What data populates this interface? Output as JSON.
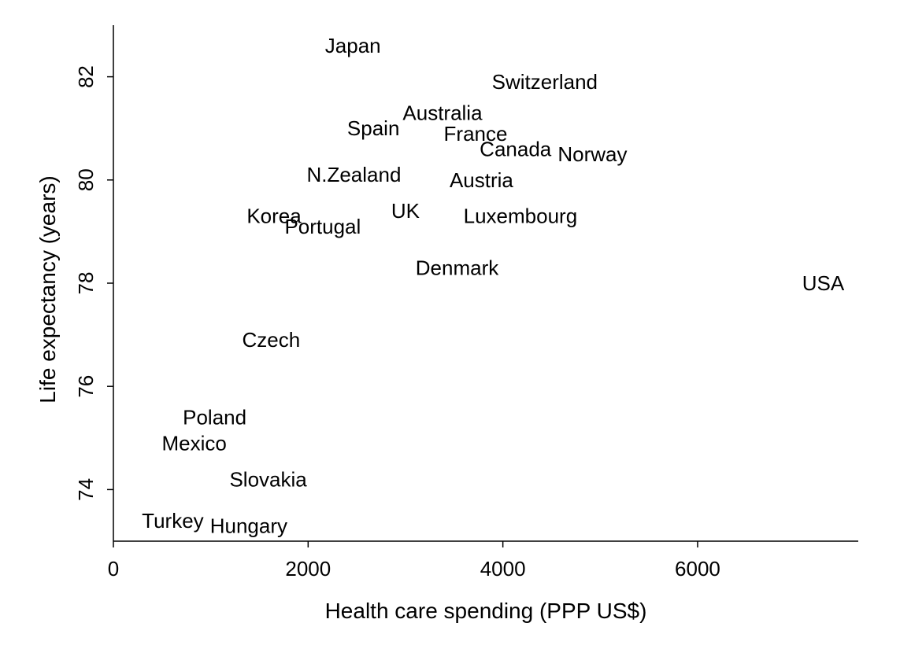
{
  "chart_data": {
    "type": "scatter",
    "title": "",
    "xlabel": "Health care spending (PPP US$)",
    "ylabel": "Life expectancy (years)",
    "xlim": [
      0,
      7600
    ],
    "ylim": [
      73,
      83
    ],
    "xticks": [
      0,
      2000,
      4000,
      6000
    ],
    "yticks": [
      74,
      76,
      78,
      80,
      82
    ],
    "grid": false,
    "legend": "none",
    "points": [
      {
        "label": "Japan",
        "x": 2460,
        "y": 82.6
      },
      {
        "label": "Switzerland",
        "x": 4430,
        "y": 81.9
      },
      {
        "label": "Australia",
        "x": 3380,
        "y": 81.3
      },
      {
        "label": "Spain",
        "x": 2670,
        "y": 81.0
      },
      {
        "label": "France",
        "x": 3720,
        "y": 80.9
      },
      {
        "label": "Canada",
        "x": 4130,
        "y": 80.6
      },
      {
        "label": "Norway",
        "x": 4920,
        "y": 80.5
      },
      {
        "label": "N.Zealand",
        "x": 2470,
        "y": 80.1
      },
      {
        "label": "Austria",
        "x": 3780,
        "y": 80.0
      },
      {
        "label": "UK",
        "x": 3000,
        "y": 79.4
      },
      {
        "label": "Luxembourg",
        "x": 4180,
        "y": 79.3
      },
      {
        "label": "Korea",
        "x": 1650,
        "y": 79.3
      },
      {
        "label": "Portugal",
        "x": 2150,
        "y": 79.1
      },
      {
        "label": "Denmark",
        "x": 3530,
        "y": 78.3
      },
      {
        "label": "USA",
        "x": 7290,
        "y": 78.0
      },
      {
        "label": "Czech",
        "x": 1620,
        "y": 76.9
      },
      {
        "label": "Poland",
        "x": 1040,
        "y": 75.4
      },
      {
        "label": "Mexico",
        "x": 830,
        "y": 74.9
      },
      {
        "label": "Slovakia",
        "x": 1590,
        "y": 74.2
      },
      {
        "label": "Turkey",
        "x": 610,
        "y": 73.4
      },
      {
        "label": "Hungary",
        "x": 1390,
        "y": 73.3
      }
    ]
  }
}
